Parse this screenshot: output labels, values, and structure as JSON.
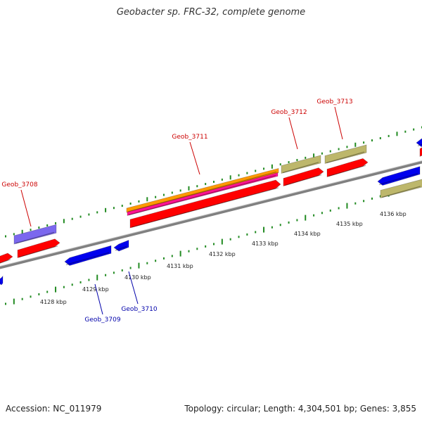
{
  "title": "Geobacter sp. FRC-32, complete genome",
  "footer": {
    "accession": "Accession: NC_011979",
    "summary": "Topology: circular; Length: 4,304,501 bp; Genes: 3,855"
  },
  "colors": {
    "forward_gene": "#ff0000",
    "reverse_gene": "#0000ee",
    "forward_label": "#cc0000",
    "reverse_label": "#0000aa",
    "tick": "#228b22",
    "backbone": "#808080",
    "purple_feature": "#7b68ee",
    "olive_feature": "#bdb76b",
    "orange_feature": "#ff9900",
    "magenta_feature": "#ff1493"
  },
  "scale_labels": [
    "4128 kbp",
    "4129 kbp",
    "4130 kbp",
    "4131 kbp",
    "4132 kbp",
    "4133 kbp",
    "4134 kbp",
    "4135 kbp",
    "4136 kbp"
  ],
  "gene_labels": [
    {
      "text": "Geob_3708",
      "strand": "forward"
    },
    {
      "text": "Geob_3709",
      "strand": "reverse"
    },
    {
      "text": "Geob_3710",
      "strand": "reverse"
    },
    {
      "text": "Geob_3711",
      "strand": "forward"
    },
    {
      "text": "Geob_3712",
      "strand": "forward"
    },
    {
      "text": "Geob_3713",
      "strand": "forward"
    }
  ]
}
